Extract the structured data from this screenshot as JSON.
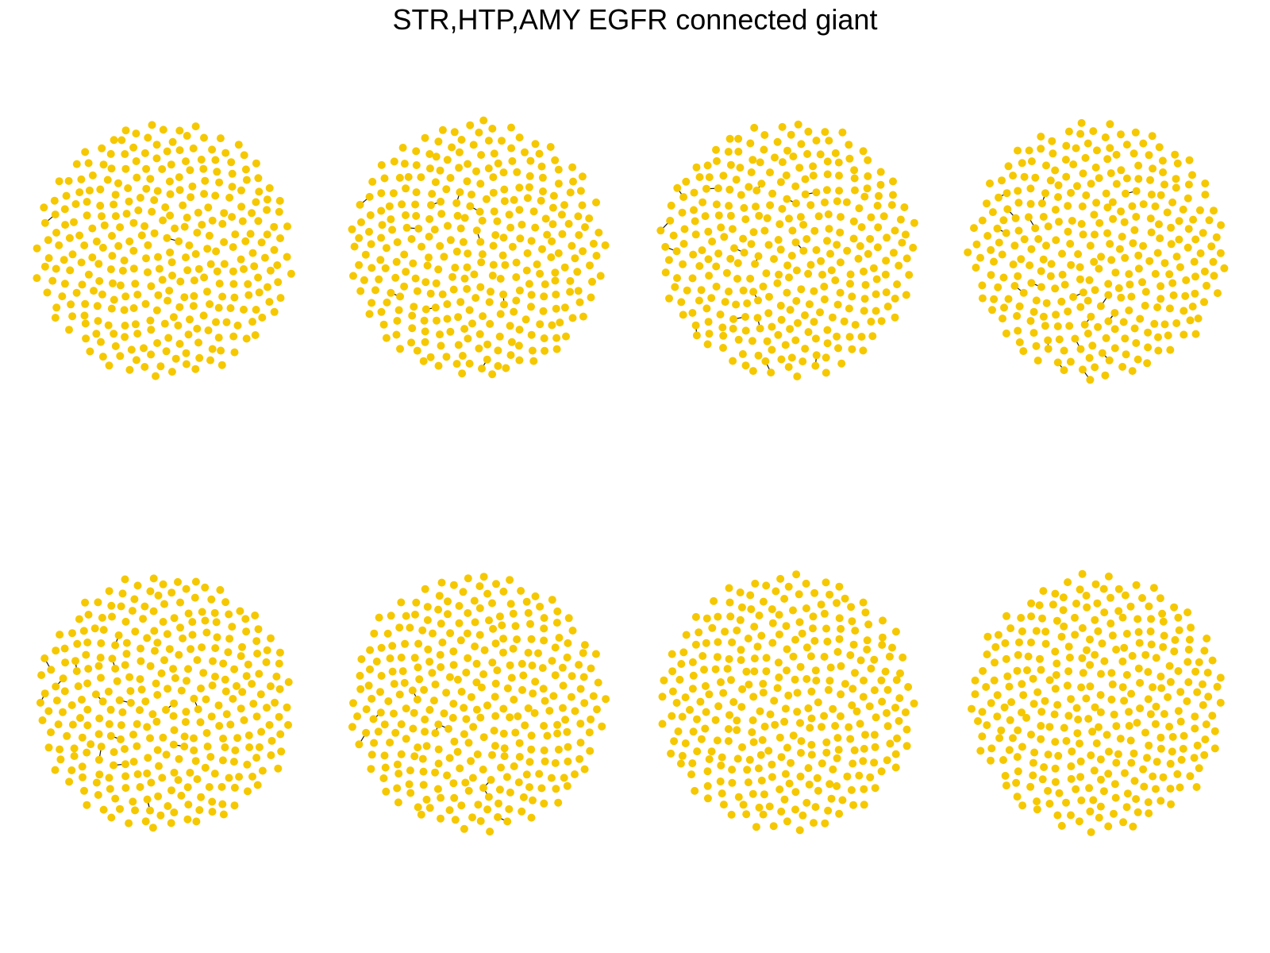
{
  "title": "STR,HTP,AMY EGFR connected giant",
  "node_color": "#F5C800",
  "edge_color": "#1a1a1a",
  "panel_count": 8,
  "panels": [
    {
      "row": 1,
      "col": 1
    },
    {
      "row": 1,
      "col": 2
    },
    {
      "row": 1,
      "col": 3
    },
    {
      "row": 1,
      "col": 4
    },
    {
      "row": 2,
      "col": 1
    },
    {
      "row": 2,
      "col": 2
    },
    {
      "row": 2,
      "col": 3
    },
    {
      "row": 2,
      "col": 4
    }
  ]
}
